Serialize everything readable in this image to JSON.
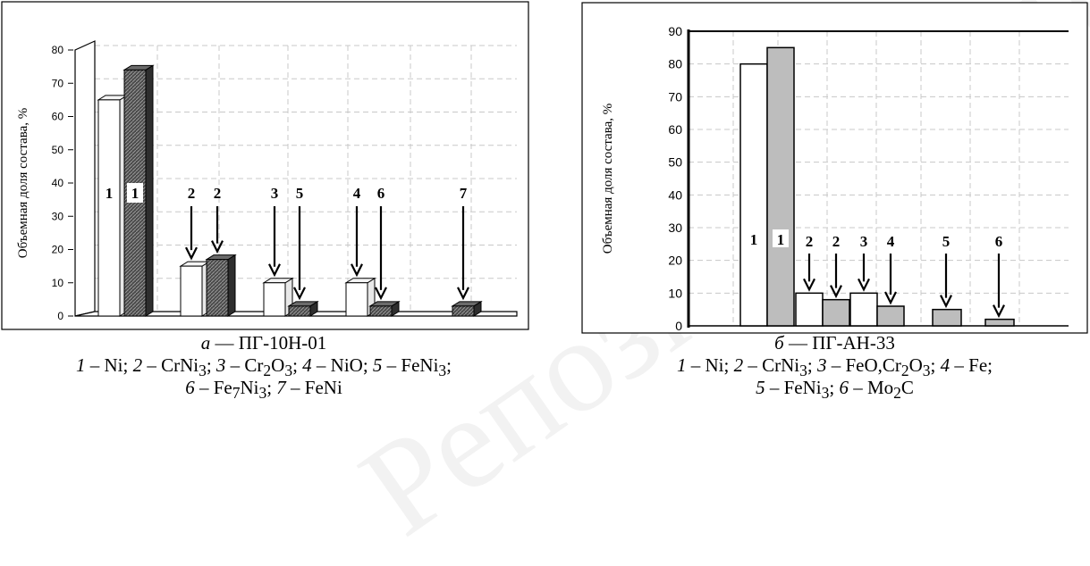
{
  "watermark": "Репозиторий БНТУ",
  "chart_data": [
    {
      "type": "bar",
      "ylabel": "Объемная доля состава, %",
      "ylim": [
        0,
        80
      ],
      "yticks": [
        0,
        10,
        20,
        30,
        40,
        50,
        60,
        70,
        80
      ],
      "style": "3d",
      "colors": {
        "white": "#ffffff",
        "dark": "#555555"
      },
      "bars": [
        {
          "label": "1",
          "value": 65,
          "color": "white",
          "arrow": false
        },
        {
          "label": "1",
          "value": 74,
          "color": "dark",
          "arrow": false
        },
        {
          "label": "2",
          "value": 15,
          "color": "white",
          "arrow": true
        },
        {
          "label": "2",
          "value": 17,
          "color": "dark",
          "arrow": true
        },
        {
          "label": "3",
          "value": 10,
          "color": "white",
          "arrow": true
        },
        {
          "label": "5",
          "value": 3,
          "color": "dark",
          "arrow": true
        },
        {
          "label": "4",
          "value": 10,
          "color": "white",
          "arrow": true
        },
        {
          "label": "6",
          "value": 3,
          "color": "dark",
          "arrow": true
        },
        {
          "label": "7",
          "value": 3,
          "color": "dark",
          "arrow": true
        }
      ],
      "caption": {
        "title_letter": "а",
        "title_rest": " — ПГ-10Н-01",
        "legend_line1": [
          {
            "n": "1",
            "t": " – Ni; "
          },
          {
            "n": "2",
            "t": " – CrNi<sub>3</sub>; "
          },
          {
            "n": "3",
            "t": " – Cr<sub>2</sub>O<sub>3</sub>; "
          },
          {
            "n": "4",
            "t": " – NiO; "
          },
          {
            "n": "5",
            "t": " – FeNi<sub>3</sub>;"
          }
        ],
        "legend_line2": [
          {
            "n": "6",
            "t": " – Fe<sub>7</sub>Ni<sub>3</sub>; "
          },
          {
            "n": "7",
            "t": " – FeNi"
          }
        ]
      }
    },
    {
      "type": "bar",
      "ylabel": "Объемная доля состава, %",
      "ylim": [
        0,
        90
      ],
      "yticks": [
        0,
        10,
        20,
        30,
        40,
        50,
        60,
        70,
        80,
        90
      ],
      "style": "flat",
      "colors": {
        "white": "#ffffff",
        "gray": "#bdbdbd"
      },
      "bars": [
        {
          "label": "1",
          "value": 80,
          "color": "white",
          "arrow": false
        },
        {
          "label": "1",
          "value": 85,
          "color": "gray",
          "arrow": false
        },
        {
          "label": "2",
          "value": 10,
          "color": "white",
          "arrow": true
        },
        {
          "label": "2",
          "value": 8,
          "color": "gray",
          "arrow": true
        },
        {
          "label": "3",
          "value": 10,
          "color": "white",
          "arrow": true
        },
        {
          "label": "4",
          "value": 6,
          "color": "gray",
          "arrow": true
        },
        {
          "label": "5",
          "value": 5,
          "color": "gray",
          "arrow": true
        },
        {
          "label": "6",
          "value": 2,
          "color": "gray",
          "arrow": true
        }
      ],
      "caption": {
        "title_letter": "б",
        "title_rest": " — ПГ-АН-33",
        "legend_line1": [
          {
            "n": "1",
            "t": " – Ni; "
          },
          {
            "n": "2",
            "t": " – CrNi<sub>3</sub>; "
          },
          {
            "n": "3",
            "t": " – FeO,Cr<sub>2</sub>O<sub>3</sub>; "
          },
          {
            "n": "4",
            "t": " – Fe;"
          }
        ],
        "legend_line2": [
          {
            "n": "5",
            "t": " – FeNi<sub>3</sub>; "
          },
          {
            "n": "6",
            "t": " – Mo<sub>2</sub>C"
          }
        ]
      }
    }
  ]
}
